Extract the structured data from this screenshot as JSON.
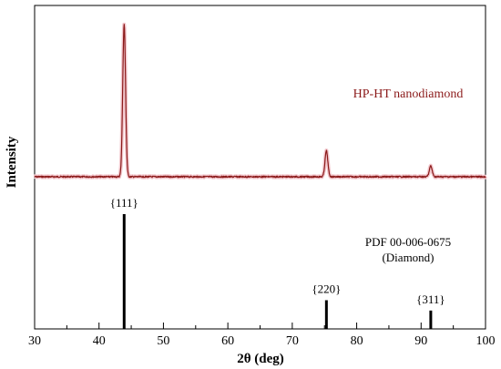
{
  "chart_data": {
    "type": "line",
    "xlabel": "2θ (deg)",
    "ylabel": "Intensity",
    "xlim": [
      30,
      100
    ],
    "x_ticks": [
      30,
      40,
      50,
      60,
      70,
      80,
      90,
      100
    ],
    "y_ticks_labeled": false,
    "grid": false,
    "series": [
      {
        "name": "HP-HT nanodiamond",
        "color": "#8b1a1a",
        "peaks": [
          {
            "x": 43.9,
            "height": 1.0
          },
          {
            "x": 75.3,
            "height": 0.17
          },
          {
            "x": 91.5,
            "height": 0.07
          }
        ]
      }
    ],
    "reference": {
      "name": "PDF 00-006-0675",
      "material": "(Diamond)",
      "color": "#000000",
      "sticks": [
        {
          "x": 43.9,
          "intensity": 1.0,
          "label": "{111}"
        },
        {
          "x": 75.3,
          "intensity": 0.25,
          "label": "{220}"
        },
        {
          "x": 91.5,
          "intensity": 0.16,
          "label": "{311}"
        }
      ]
    }
  }
}
